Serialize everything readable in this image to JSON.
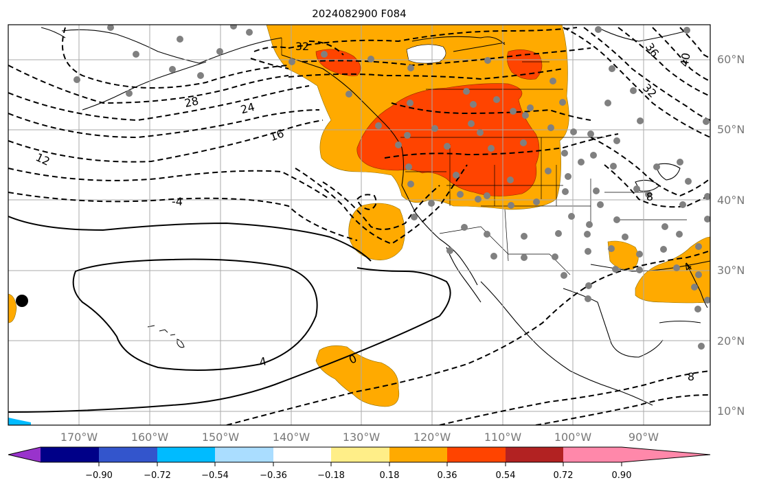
{
  "title": "2024082900 F084",
  "lon_ticks": [
    "170°W",
    "160°W",
    "150°W",
    "140°W",
    "130°W",
    "120°W",
    "110°W",
    "100°W",
    "90°W"
  ],
  "lat_ticks": [
    "10°N",
    "20°N",
    "30°N",
    "40°N",
    "50°N",
    "60°N"
  ],
  "colorbar": {
    "tick_labels": [
      "−0.90",
      "−0.72",
      "−0.54",
      "−0.36",
      "−0.18",
      "0.18",
      "0.36",
      "0.54",
      "0.72",
      "0.90"
    ],
    "bins": [
      {
        "color": "#9933cc",
        "range": "< -0.90"
      },
      {
        "color": "#000088",
        "range": "-0.90 to -0.72"
      },
      {
        "color": "#3355cc",
        "range": "-0.72 to -0.54"
      },
      {
        "color": "#00bbff",
        "range": "-0.54 to -0.36"
      },
      {
        "color": "#aaddff",
        "range": "-0.36 to -0.18"
      },
      {
        "color": "#ffffff",
        "range": "-0.18 to 0.18"
      },
      {
        "color": "#ffee88",
        "range": "0.18 to 0.36"
      },
      {
        "color": "#ffaa00",
        "range": "0.36 to 0.54"
      },
      {
        "color": "#ff4400",
        "range": "0.54 to 0.72"
      },
      {
        "color": "#b22222",
        "range": "0.72 to 0.90"
      },
      {
        "color": "#ff88aa",
        "range": "> 0.90"
      }
    ]
  },
  "contour_labels": [
    "32",
    "28",
    "24",
    "16",
    "12",
    "-4",
    "4",
    "0",
    "36",
    "40",
    "32",
    "8",
    "8",
    "4"
  ],
  "colors": {
    "orange": "#ffaa00",
    "red_orange": "#ff4400",
    "station_dot": "#808080",
    "grid": "#aaaaaa",
    "contour": "#000000"
  }
}
